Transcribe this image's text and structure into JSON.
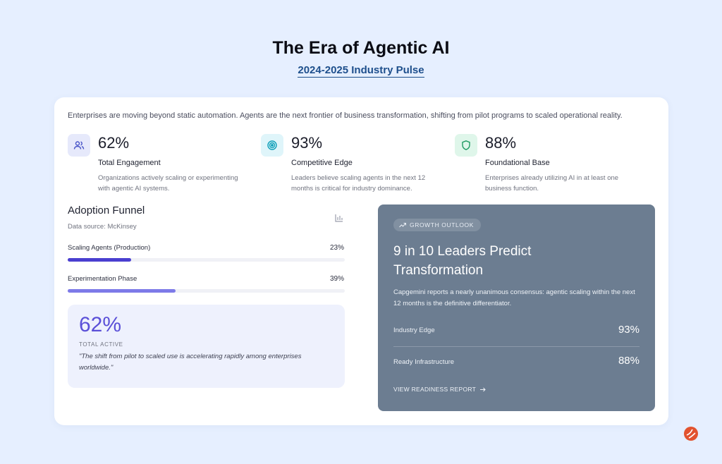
{
  "header": {
    "title": "The Era of Agentic AI",
    "subtitle": "2024-2025 Industry Pulse"
  },
  "intro": "Enterprises are moving beyond static automation. Agents are the next frontier of business transformation, shifting from pilot programs to scaled operational reality.",
  "stats": [
    {
      "icon": "users-icon",
      "value": "62%",
      "label": "Total Engagement",
      "desc": "Organizations actively scaling or experimenting with agentic AI systems.",
      "icon_color": "#4b57c9",
      "icon_bg": "#e6e9fb"
    },
    {
      "icon": "target-icon",
      "value": "93%",
      "label": "Competitive Edge",
      "desc": "Leaders believe scaling agents in the next 12 months is critical for industry dominance.",
      "icon_color": "#0e9fb8",
      "icon_bg": "#dff5fa"
    },
    {
      "icon": "shield-icon",
      "value": "88%",
      "label": "Foundational Base",
      "desc": "Enterprises already utilizing AI in at least one business function.",
      "icon_color": "#1f9b62",
      "icon_bg": "#dff6ea"
    }
  ],
  "funnel": {
    "title": "Adoption Funnel",
    "source": "Data source: McKinsey",
    "bars": [
      {
        "label": "Scaling Agents (Production)",
        "value": "23%",
        "fraction": 0.23,
        "color": "#4a3fd0"
      },
      {
        "label": "Experimentation Phase",
        "value": "39%",
        "fraction": 0.39,
        "color": "#7d7ae8"
      }
    ],
    "active": {
      "value": "62%",
      "label": "TOTAL ACTIVE",
      "quote": "\"The shift from pilot to scaled use is accelerating rapidly among enterprises worldwide.\""
    }
  },
  "outlook": {
    "badge": "GROWTH OUTLOOK",
    "title": "9 in 10 Leaders Predict Transformation",
    "desc": "Capgemini reports a nearly unanimous consensus: agentic scaling within the next 12 months is the definitive differentiator.",
    "metrics": [
      {
        "label": "Industry Edge",
        "value": "93%"
      },
      {
        "label": "Ready Infrastructure",
        "value": "88%"
      }
    ],
    "link": "VIEW READINESS REPORT"
  }
}
